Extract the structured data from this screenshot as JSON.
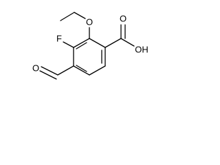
{
  "atoms": [
    {
      "label": "O"
    },
    {
      "label": "F"
    },
    {
      "label": "O"
    },
    {
      "label": "O"
    },
    {
      "label": "OH"
    }
  ]
}
